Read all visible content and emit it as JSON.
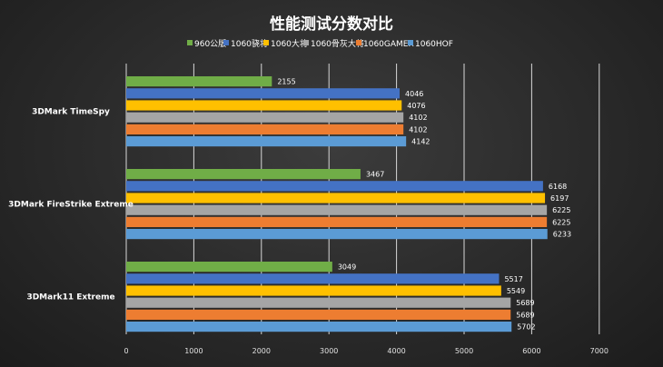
{
  "chart_data": {
    "type": "bar",
    "orientation": "horizontal",
    "title": "性能测试分数对比",
    "categories": [
      "3DMark  TimeSpy",
      "3DMark  FireStrike Extreme",
      "3DMark11 Extreme"
    ],
    "series": [
      {
        "name": "960公版",
        "color": "#70ad47",
        "values": [
          2155,
          3467,
          3049
        ]
      },
      {
        "name": "1060骁将",
        "color": "#4472c4",
        "values": [
          4046,
          6168,
          5517
        ]
      },
      {
        "name": "1060大将",
        "color": "#ffc000",
        "values": [
          4076,
          6197,
          5549
        ]
      },
      {
        "name": "1060骨灰大将",
        "color": "#a5a5a5",
        "values": [
          4102,
          6225,
          5689
        ]
      },
      {
        "name": "1060GAMER",
        "color": "#ed7d31",
        "values": [
          4102,
          6225,
          5689
        ]
      },
      {
        "name": "1060HOF",
        "color": "#5b9bd5",
        "values": [
          4142,
          6233,
          5702
        ]
      }
    ],
    "xlim": [
      0,
      7000
    ],
    "xticks": [
      0,
      1000,
      2000,
      3000,
      4000,
      5000,
      6000,
      7000
    ],
    "xlabel": "",
    "ylabel": "",
    "grid": "vertical",
    "legend": "top-center"
  }
}
